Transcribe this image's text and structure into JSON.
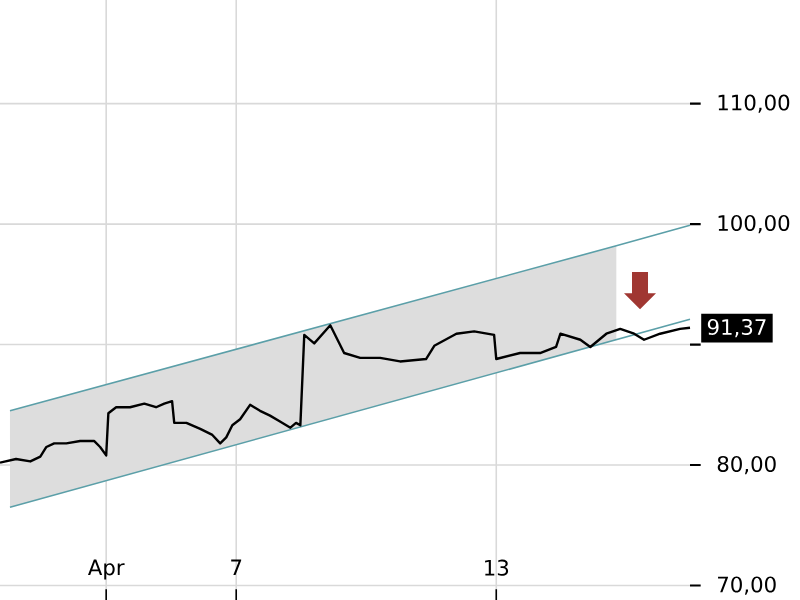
{
  "chart_data": {
    "type": "line",
    "xlim": [
      1.55,
      17.47
    ],
    "ylim": [
      68.8,
      118.6
    ],
    "xticks": [
      {
        "value": 4,
        "label": "Apr"
      },
      7,
      13
    ],
    "yticks": [
      {
        "value": 70,
        "label": "70,00"
      },
      {
        "value": 80,
        "label": "80,00"
      },
      {
        "value": 90,
        "label": null
      },
      {
        "value": 100,
        "label": "100,00"
      },
      {
        "value": 110,
        "label": "110,00"
      }
    ],
    "grid": true,
    "series": [
      {
        "type": "line",
        "color": "#5b9fa8",
        "x": [
          1.78,
          15.77,
          17.47
        ],
        "values": [
          84.5,
          98.2,
          99.9
        ],
        "lower": [
          76.5,
          90.4,
          null
        ],
        "upper": [
          84.5,
          98.2,
          null
        ]
      },
      {
        "type": "line",
        "color": "#5b9fa8",
        "x": [
          1.78,
          17.47
        ],
        "values": [
          76.5,
          92.1
        ]
      },
      {
        "color": "#000000",
        "x": [
          1.55,
          1.92,
          2.25,
          2.48,
          2.62,
          2.8,
          3.08,
          3.4,
          3.72,
          3.86,
          4.0,
          4.05,
          4.23,
          4.55,
          4.88,
          5.15,
          5.34,
          5.52,
          5.57,
          5.85,
          6.17,
          6.45,
          6.63,
          6.77,
          6.91,
          7.09,
          7.32,
          7.55,
          7.78,
          8.02,
          8.25,
          8.38,
          8.48,
          8.57,
          8.8,
          9.17,
          9.49,
          9.86,
          10.32,
          10.78,
          11.38,
          11.57,
          12.08,
          12.49,
          12.95,
          13.0,
          13.55,
          14.01,
          14.38,
          14.48,
          14.94,
          15.17,
          15.54,
          15.86,
          16.18,
          16.41,
          16.78,
          17.24,
          17.47
        ],
        "values": [
          80.2,
          80.5,
          80.3,
          80.7,
          81.5,
          81.8,
          81.8,
          82.0,
          82.0,
          81.5,
          80.8,
          84.3,
          84.8,
          84.8,
          85.1,
          84.8,
          85.1,
          85.3,
          83.5,
          83.5,
          83.0,
          82.5,
          81.8,
          82.3,
          83.3,
          83.8,
          85.0,
          84.5,
          84.1,
          83.6,
          83.1,
          83.5,
          83.3,
          90.8,
          90.1,
          91.6,
          89.3,
          88.9,
          88.9,
          88.6,
          88.8,
          89.9,
          90.9,
          91.1,
          90.8,
          88.8,
          89.3,
          89.3,
          89.8,
          90.9,
          90.4,
          89.8,
          90.9,
          91.3,
          90.9,
          90.4,
          90.9,
          91.3,
          91.4
        ]
      }
    ],
    "annotations": [
      {
        "text": "91,37",
        "x": 17.47,
        "y": 91.37
      }
    ]
  }
}
